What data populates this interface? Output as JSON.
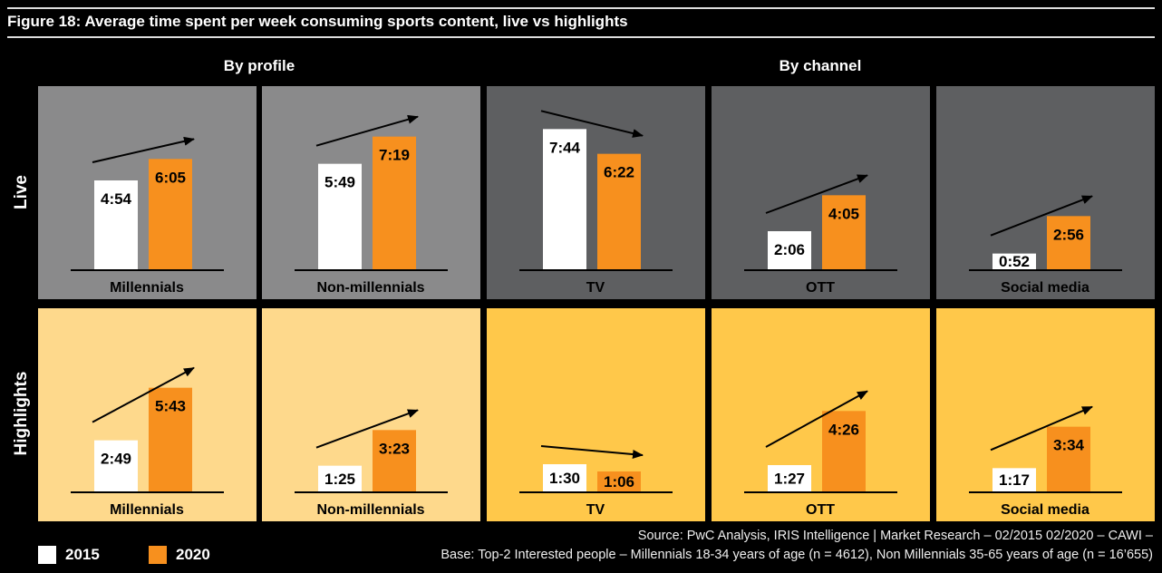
{
  "title": "Figure 18: Average time spent per week consuming sports content, live vs highlights",
  "section_headers": [
    "By profile",
    "By channel"
  ],
  "row_labels": [
    "Live",
    "Highlights"
  ],
  "legend": [
    {
      "label": "2015",
      "color": "#ffffff"
    },
    {
      "label": "2020",
      "color": "#f7901e"
    }
  ],
  "colors": {
    "live_profile_bg": "#8a8a8b",
    "live_channel_bg": "#5e5f61",
    "highlights_profile_bg": "#fed98c",
    "highlights_channel_bg": "#ffc84a",
    "bar_2015": "#ffffff",
    "bar_2020": "#f7901e"
  },
  "source": [
    "Source: PwC Analysis, IRIS Intelligence | Market Research – 02/2015 02/2020 – CAWI –",
    "Base: Top-2 Interested people – Millennials 18-34 years of age (n = 4612), Non Millennials 35-65 years of age (n = 16’655)"
  ],
  "chart_data": {
    "type": "bar",
    "unit": "hours:minutes per week",
    "series_names": [
      "2015",
      "2020"
    ],
    "panels": [
      {
        "row": "Live",
        "category": "Millennials",
        "group": "By profile",
        "values": [
          4.9,
          6.083
        ],
        "labels": [
          "4:54",
          "6:05"
        ],
        "trend": "up"
      },
      {
        "row": "Live",
        "category": "Non-millennials",
        "group": "By profile",
        "values": [
          5.817,
          7.317
        ],
        "labels": [
          "5:49",
          "7:19"
        ],
        "trend": "up"
      },
      {
        "row": "Live",
        "category": "TV",
        "group": "By channel",
        "values": [
          7.733,
          6.367
        ],
        "labels": [
          "7:44",
          "6:22"
        ],
        "trend": "down"
      },
      {
        "row": "Live",
        "category": "OTT",
        "group": "By channel",
        "values": [
          2.1,
          4.083
        ],
        "labels": [
          "2:06",
          "4:05"
        ],
        "trend": "up"
      },
      {
        "row": "Live",
        "category": "Social media",
        "group": "By channel",
        "values": [
          0.867,
          2.933
        ],
        "labels": [
          "0:52",
          "2:56"
        ],
        "trend": "up"
      },
      {
        "row": "Highlights",
        "category": "Millennials",
        "group": "By profile",
        "values": [
          2.817,
          5.717
        ],
        "labels": [
          "2:49",
          "5:43"
        ],
        "trend": "up"
      },
      {
        "row": "Highlights",
        "category": "Non-millennials",
        "group": "By profile",
        "values": [
          1.417,
          3.383
        ],
        "labels": [
          "1:25",
          "3:23"
        ],
        "trend": "up"
      },
      {
        "row": "Highlights",
        "category": "TV",
        "group": "By channel",
        "values": [
          1.5,
          1.1
        ],
        "labels": [
          "1:30",
          "1:06"
        ],
        "trend": "down"
      },
      {
        "row": "Highlights",
        "category": "OTT",
        "group": "By channel",
        "values": [
          1.45,
          4.433
        ],
        "labels": [
          "1:27",
          "4:26"
        ],
        "trend": "up"
      },
      {
        "row": "Highlights",
        "category": "Social media",
        "group": "By channel",
        "values": [
          1.283,
          3.567
        ],
        "labels": [
          "1:17",
          "3:34"
        ],
        "trend": "up"
      }
    ]
  }
}
